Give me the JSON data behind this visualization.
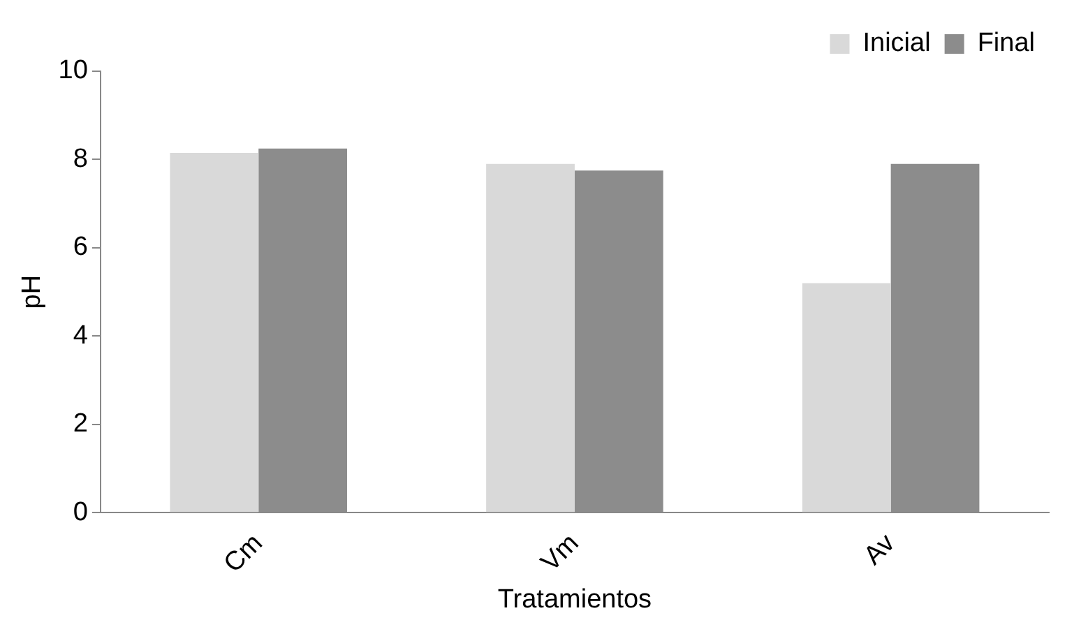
{
  "chart_data": {
    "type": "bar",
    "xlabel": "Tratamientos",
    "ylabel": "pH",
    "categories": [
      "Cm",
      "Vm",
      "Av"
    ],
    "series": [
      {
        "name": "Inicial",
        "color": "#d9d9d9",
        "values": [
          8.15,
          7.9,
          5.2
        ]
      },
      {
        "name": "Final",
        "color": "#8c8c8c",
        "values": [
          8.25,
          7.75,
          7.9
        ]
      }
    ],
    "ylim": [
      0,
      10
    ],
    "yticks": [
      0,
      2,
      4,
      6,
      8,
      10
    ],
    "grid": false,
    "legend": "top right"
  }
}
